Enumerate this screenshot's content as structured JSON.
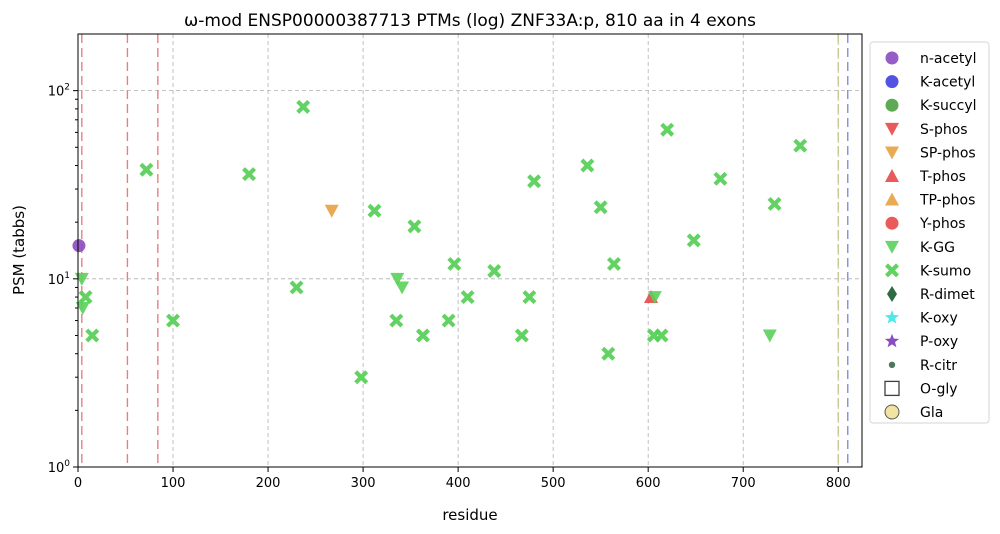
{
  "chart_data": {
    "type": "scatter",
    "title": "ω-mod ENSP00000387713 PTMs (log) ZNF33A:p, 810 aa in 4 exons",
    "xlabel": "residue",
    "ylabel": "PSM (tabbs)",
    "xlim": [
      0,
      825
    ],
    "ylim": [
      1,
      200
    ],
    "yscale": "log",
    "grid": true,
    "legend_position": "right",
    "x_ticks": [
      {
        "value": 0,
        "label": "0"
      },
      {
        "value": 100,
        "label": "100"
      },
      {
        "value": 200,
        "label": "200"
      },
      {
        "value": 300,
        "label": "300"
      },
      {
        "value": 400,
        "label": "400"
      },
      {
        "value": 500,
        "label": "500"
      },
      {
        "value": 600,
        "label": "600"
      },
      {
        "value": 700,
        "label": "700"
      },
      {
        "value": 800,
        "label": "800"
      }
    ],
    "y_ticks": [
      {
        "value": 1,
        "base": "10",
        "exp": "0"
      },
      {
        "value": 10,
        "base": "10",
        "exp": "1"
      },
      {
        "value": 100,
        "base": "10",
        "exp": "2"
      }
    ],
    "vlines": [
      {
        "x": 4,
        "color": "#e88080"
      },
      {
        "x": 52,
        "color": "#e88080"
      },
      {
        "x": 84,
        "color": "#e88080"
      },
      {
        "x": 800,
        "color": "#c8c890"
      },
      {
        "x": 810,
        "color": "#8090e0"
      }
    ],
    "series": [
      {
        "name": "n-acetyl",
        "marker": "circle",
        "color": "#8a4cc0",
        "points": [
          [
            1,
            15
          ]
        ]
      },
      {
        "name": "K-acetyl",
        "marker": "circle",
        "color": "#4040e0",
        "points": []
      },
      {
        "name": "K-succyl",
        "marker": "circle",
        "color": "#4ca040",
        "points": []
      },
      {
        "name": "S-phos",
        "marker": "triangle-down",
        "color": "#e84848",
        "points": []
      },
      {
        "name": "SP-phos",
        "marker": "triangle-down",
        "color": "#e8a040",
        "points": [
          [
            267,
            23
          ]
        ]
      },
      {
        "name": "T-phos",
        "marker": "triangle-up",
        "color": "#e84848",
        "points": [
          [
            603,
            8
          ]
        ]
      },
      {
        "name": "TP-phos",
        "marker": "triangle-up",
        "color": "#e8a040",
        "points": []
      },
      {
        "name": "Y-phos",
        "marker": "circle",
        "color": "#e84848",
        "points": []
      },
      {
        "name": "K-GG",
        "marker": "triangle-down",
        "color": "#5ad05a",
        "points": [
          [
            4,
            10
          ],
          [
            5,
            7
          ],
          [
            336,
            10
          ],
          [
            341,
            9
          ],
          [
            607,
            8
          ],
          [
            728,
            5
          ]
        ]
      },
      {
        "name": "K-sumo",
        "marker": "x",
        "color": "#5ad05a",
        "points": [
          [
            8,
            8
          ],
          [
            15,
            5
          ],
          [
            72,
            38
          ],
          [
            100,
            6
          ],
          [
            180,
            36
          ],
          [
            230,
            9
          ],
          [
            237,
            82
          ],
          [
            298,
            3
          ],
          [
            312,
            23
          ],
          [
            335,
            6
          ],
          [
            354,
            19
          ],
          [
            363,
            5
          ],
          [
            390,
            6
          ],
          [
            396,
            12
          ],
          [
            410,
            8
          ],
          [
            438,
            11
          ],
          [
            467,
            5
          ],
          [
            475,
            8
          ],
          [
            480,
            33
          ],
          [
            536,
            40
          ],
          [
            550,
            24
          ],
          [
            558,
            4
          ],
          [
            564,
            12
          ],
          [
            606,
            5
          ],
          [
            614,
            5
          ],
          [
            620,
            62
          ],
          [
            648,
            16
          ],
          [
            676,
            34
          ],
          [
            733,
            25
          ],
          [
            760,
            51
          ]
        ]
      },
      {
        "name": "R-dimet",
        "marker": "diamond",
        "color": "#2e6a44",
        "points": []
      },
      {
        "name": "K-oxy",
        "marker": "star",
        "color": "#50e8e8",
        "points": []
      },
      {
        "name": "P-oxy",
        "marker": "star",
        "color": "#8a4cc0",
        "points": []
      },
      {
        "name": "R-citr",
        "marker": "small-circle",
        "color": "#4a7a5a",
        "points": []
      },
      {
        "name": "O-gly",
        "marker": "square-open",
        "color": "#404040",
        "points": []
      },
      {
        "name": "Gla",
        "marker": "circle-open",
        "color": "#f0e4a0",
        "points": []
      }
    ]
  }
}
